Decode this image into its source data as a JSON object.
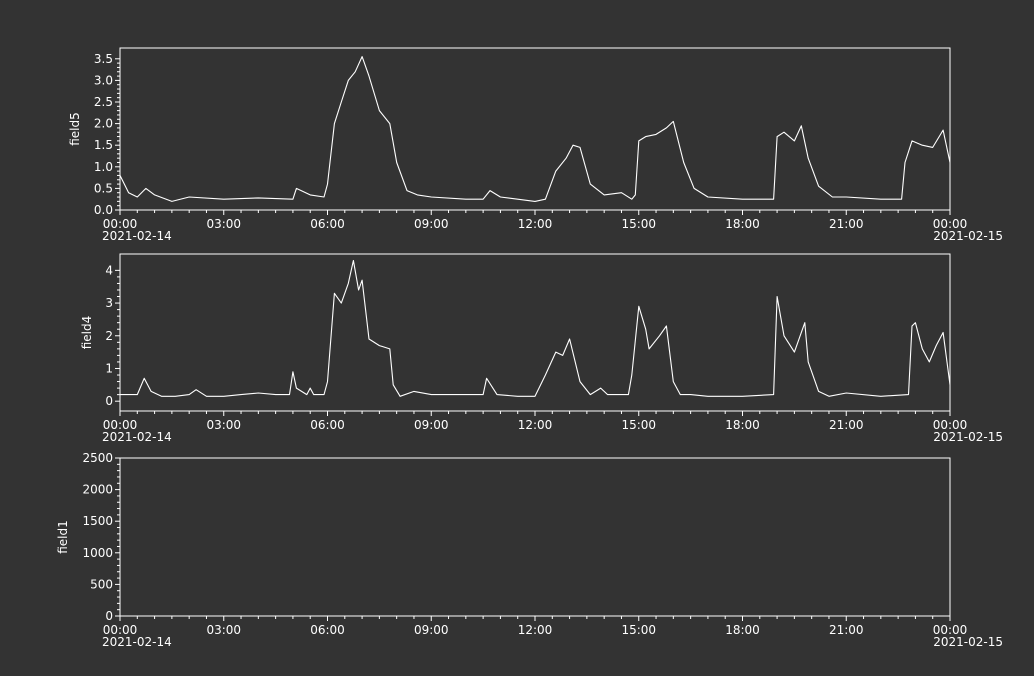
{
  "chart_data": [
    {
      "type": "line",
      "ylabel": "field5",
      "ylim": [
        0,
        3.75
      ],
      "yticks": [
        "0.0",
        "0.5",
        "1.0",
        "1.5",
        "2.0",
        "2.5",
        "3.0",
        "3.5"
      ],
      "ytick_values": [
        0,
        0.5,
        1,
        1.5,
        2,
        2.5,
        3,
        3.5
      ],
      "xlim": [
        "00:00",
        "24:00"
      ],
      "xticks": [
        "00:00",
        "03:00",
        "06:00",
        "09:00",
        "12:00",
        "15:00",
        "18:00",
        "21:00",
        "00:00"
      ],
      "xdates": [
        "2021-02-14",
        "2021-02-15"
      ],
      "series": [
        {
          "x": [
            0,
            0.25,
            0.5,
            0.75,
            1,
            1.5,
            2,
            3,
            4,
            5,
            5.1,
            5.5,
            5.9,
            6.0,
            6.2,
            6.4,
            6.6,
            6.8,
            7.0,
            7.2,
            7.5,
            7.8,
            8.0,
            8.3,
            8.6,
            9,
            10,
            10.5,
            10.7,
            11,
            11.5,
            12,
            12.3,
            12.6,
            12.9,
            13.1,
            13.3,
            13.6,
            14,
            14.5,
            14.8,
            14.9,
            15.0,
            15.2,
            15.5,
            15.8,
            16.0,
            16.3,
            16.6,
            17,
            18,
            18.9,
            19.0,
            19.2,
            19.5,
            19.7,
            19.9,
            20.2,
            20.6,
            21,
            22,
            22.6,
            22.7,
            22.9,
            23.2,
            23.5,
            23.8,
            24
          ],
          "y": [
            0.8,
            0.4,
            0.3,
            0.5,
            0.35,
            0.2,
            0.3,
            0.25,
            0.28,
            0.25,
            0.5,
            0.35,
            0.3,
            0.6,
            2.0,
            2.5,
            3.0,
            3.2,
            3.55,
            3.1,
            2.3,
            2.0,
            1.1,
            0.45,
            0.35,
            0.3,
            0.25,
            0.25,
            0.45,
            0.3,
            0.25,
            0.2,
            0.25,
            0.9,
            1.2,
            1.5,
            1.45,
            0.6,
            0.35,
            0.4,
            0.25,
            0.35,
            1.6,
            1.7,
            1.75,
            1.9,
            2.05,
            1.1,
            0.5,
            0.3,
            0.25,
            0.25,
            1.7,
            1.8,
            1.6,
            1.95,
            1.2,
            0.55,
            0.3,
            0.3,
            0.25,
            0.25,
            1.1,
            1.6,
            1.5,
            1.45,
            1.85,
            1.1
          ]
        }
      ]
    },
    {
      "type": "line",
      "ylabel": "field4",
      "ylim": [
        -0.3,
        4.5
      ],
      "yticks": [
        "0",
        "1",
        "2",
        "3",
        "4"
      ],
      "ytick_values": [
        0,
        1,
        2,
        3,
        4
      ],
      "xlim": [
        "00:00",
        "24:00"
      ],
      "xticks": [
        "00:00",
        "03:00",
        "06:00",
        "09:00",
        "12:00",
        "15:00",
        "18:00",
        "21:00",
        "00:00"
      ],
      "xdates": [
        "2021-02-14",
        "2021-02-15"
      ],
      "series": [
        {
          "x": [
            0,
            0.5,
            0.7,
            0.9,
            1.2,
            1.6,
            2,
            2.2,
            2.5,
            3,
            3.5,
            4,
            4.5,
            4.9,
            5.0,
            5.1,
            5.4,
            5.5,
            5.6,
            5.9,
            6.0,
            6.2,
            6.4,
            6.6,
            6.75,
            6.9,
            7.0,
            7.2,
            7.5,
            7.8,
            7.9,
            8.1,
            8.5,
            9,
            10,
            10.5,
            10.6,
            10.9,
            11.5,
            12,
            12.3,
            12.6,
            12.8,
            13.0,
            13.3,
            13.6,
            13.9,
            14.1,
            14.5,
            14.7,
            14.8,
            15.0,
            15.2,
            15.3,
            15.6,
            15.8,
            16.0,
            16.2,
            16.5,
            17,
            18,
            18.9,
            19.0,
            19.2,
            19.5,
            19.8,
            19.9,
            20.2,
            20.5,
            21,
            22,
            22.8,
            22.9,
            23.0,
            23.2,
            23.4,
            23.6,
            23.8,
            24
          ],
          "y": [
            0.2,
            0.2,
            0.7,
            0.3,
            0.15,
            0.15,
            0.2,
            0.35,
            0.15,
            0.15,
            0.2,
            0.25,
            0.2,
            0.2,
            0.9,
            0.4,
            0.2,
            0.4,
            0.2,
            0.2,
            0.6,
            3.3,
            3.0,
            3.6,
            4.3,
            3.4,
            3.7,
            1.9,
            1.7,
            1.6,
            0.5,
            0.15,
            0.3,
            0.2,
            0.2,
            0.2,
            0.7,
            0.2,
            0.15,
            0.15,
            0.8,
            1.5,
            1.4,
            1.9,
            0.6,
            0.2,
            0.4,
            0.2,
            0.2,
            0.2,
            0.8,
            2.9,
            2.2,
            1.6,
            2.0,
            2.3,
            0.6,
            0.2,
            0.2,
            0.15,
            0.15,
            0.2,
            3.2,
            2.0,
            1.5,
            2.4,
            1.2,
            0.3,
            0.15,
            0.25,
            0.15,
            0.2,
            2.3,
            2.4,
            1.6,
            1.2,
            1.7,
            2.1,
            0.5
          ]
        }
      ]
    },
    {
      "type": "line",
      "ylabel": "field1",
      "ylim": [
        0,
        2500
      ],
      "yticks": [
        "0",
        "500",
        "1000",
        "1500",
        "2000",
        "2500"
      ],
      "ytick_values": [
        0,
        500,
        1000,
        1500,
        2000,
        2500
      ],
      "xlim": [
        "00:00",
        "24:00"
      ],
      "xticks": [
        "00:00",
        "03:00",
        "06:00",
        "09:00",
        "12:00",
        "15:00",
        "18:00",
        "21:00",
        "00:00"
      ],
      "xdates": [
        "2021-02-14",
        "2021-02-15"
      ],
      "series": []
    }
  ]
}
